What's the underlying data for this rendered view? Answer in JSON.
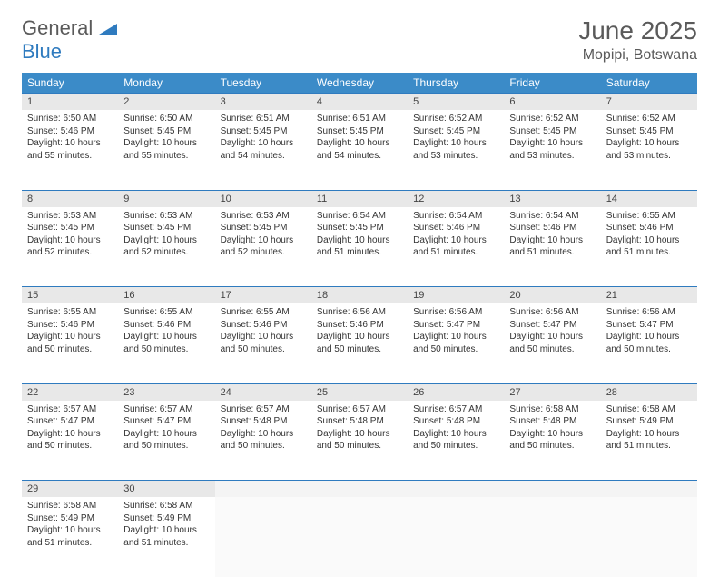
{
  "logo": {
    "line1": "General",
    "line2": "Blue"
  },
  "title": "June 2025",
  "location": "Mopipi, Botswana",
  "colors": {
    "header_bg": "#3b8bc8",
    "header_text": "#ffffff",
    "daynum_bg": "#e8e8e8",
    "border": "#2f7bbf",
    "logo_gray": "#5a5a5a",
    "logo_blue": "#2f7bbf"
  },
  "weekdays": [
    "Sunday",
    "Monday",
    "Tuesday",
    "Wednesday",
    "Thursday",
    "Friday",
    "Saturday"
  ],
  "layout": {
    "columns": 7,
    "rows": 5,
    "cell_font_size": 10
  },
  "weeks": [
    [
      {
        "n": "1",
        "sunrise": "Sunrise: 6:50 AM",
        "sunset": "Sunset: 5:46 PM",
        "day1": "Daylight: 10 hours",
        "day2": "and 55 minutes."
      },
      {
        "n": "2",
        "sunrise": "Sunrise: 6:50 AM",
        "sunset": "Sunset: 5:45 PM",
        "day1": "Daylight: 10 hours",
        "day2": "and 55 minutes."
      },
      {
        "n": "3",
        "sunrise": "Sunrise: 6:51 AM",
        "sunset": "Sunset: 5:45 PM",
        "day1": "Daylight: 10 hours",
        "day2": "and 54 minutes."
      },
      {
        "n": "4",
        "sunrise": "Sunrise: 6:51 AM",
        "sunset": "Sunset: 5:45 PM",
        "day1": "Daylight: 10 hours",
        "day2": "and 54 minutes."
      },
      {
        "n": "5",
        "sunrise": "Sunrise: 6:52 AM",
        "sunset": "Sunset: 5:45 PM",
        "day1": "Daylight: 10 hours",
        "day2": "and 53 minutes."
      },
      {
        "n": "6",
        "sunrise": "Sunrise: 6:52 AM",
        "sunset": "Sunset: 5:45 PM",
        "day1": "Daylight: 10 hours",
        "day2": "and 53 minutes."
      },
      {
        "n": "7",
        "sunrise": "Sunrise: 6:52 AM",
        "sunset": "Sunset: 5:45 PM",
        "day1": "Daylight: 10 hours",
        "day2": "and 53 minutes."
      }
    ],
    [
      {
        "n": "8",
        "sunrise": "Sunrise: 6:53 AM",
        "sunset": "Sunset: 5:45 PM",
        "day1": "Daylight: 10 hours",
        "day2": "and 52 minutes."
      },
      {
        "n": "9",
        "sunrise": "Sunrise: 6:53 AM",
        "sunset": "Sunset: 5:45 PM",
        "day1": "Daylight: 10 hours",
        "day2": "and 52 minutes."
      },
      {
        "n": "10",
        "sunrise": "Sunrise: 6:53 AM",
        "sunset": "Sunset: 5:45 PM",
        "day1": "Daylight: 10 hours",
        "day2": "and 52 minutes."
      },
      {
        "n": "11",
        "sunrise": "Sunrise: 6:54 AM",
        "sunset": "Sunset: 5:45 PM",
        "day1": "Daylight: 10 hours",
        "day2": "and 51 minutes."
      },
      {
        "n": "12",
        "sunrise": "Sunrise: 6:54 AM",
        "sunset": "Sunset: 5:46 PM",
        "day1": "Daylight: 10 hours",
        "day2": "and 51 minutes."
      },
      {
        "n": "13",
        "sunrise": "Sunrise: 6:54 AM",
        "sunset": "Sunset: 5:46 PM",
        "day1": "Daylight: 10 hours",
        "day2": "and 51 minutes."
      },
      {
        "n": "14",
        "sunrise": "Sunrise: 6:55 AM",
        "sunset": "Sunset: 5:46 PM",
        "day1": "Daylight: 10 hours",
        "day2": "and 51 minutes."
      }
    ],
    [
      {
        "n": "15",
        "sunrise": "Sunrise: 6:55 AM",
        "sunset": "Sunset: 5:46 PM",
        "day1": "Daylight: 10 hours",
        "day2": "and 50 minutes."
      },
      {
        "n": "16",
        "sunrise": "Sunrise: 6:55 AM",
        "sunset": "Sunset: 5:46 PM",
        "day1": "Daylight: 10 hours",
        "day2": "and 50 minutes."
      },
      {
        "n": "17",
        "sunrise": "Sunrise: 6:55 AM",
        "sunset": "Sunset: 5:46 PM",
        "day1": "Daylight: 10 hours",
        "day2": "and 50 minutes."
      },
      {
        "n": "18",
        "sunrise": "Sunrise: 6:56 AM",
        "sunset": "Sunset: 5:46 PM",
        "day1": "Daylight: 10 hours",
        "day2": "and 50 minutes."
      },
      {
        "n": "19",
        "sunrise": "Sunrise: 6:56 AM",
        "sunset": "Sunset: 5:47 PM",
        "day1": "Daylight: 10 hours",
        "day2": "and 50 minutes."
      },
      {
        "n": "20",
        "sunrise": "Sunrise: 6:56 AM",
        "sunset": "Sunset: 5:47 PM",
        "day1": "Daylight: 10 hours",
        "day2": "and 50 minutes."
      },
      {
        "n": "21",
        "sunrise": "Sunrise: 6:56 AM",
        "sunset": "Sunset: 5:47 PM",
        "day1": "Daylight: 10 hours",
        "day2": "and 50 minutes."
      }
    ],
    [
      {
        "n": "22",
        "sunrise": "Sunrise: 6:57 AM",
        "sunset": "Sunset: 5:47 PM",
        "day1": "Daylight: 10 hours",
        "day2": "and 50 minutes."
      },
      {
        "n": "23",
        "sunrise": "Sunrise: 6:57 AM",
        "sunset": "Sunset: 5:47 PM",
        "day1": "Daylight: 10 hours",
        "day2": "and 50 minutes."
      },
      {
        "n": "24",
        "sunrise": "Sunrise: 6:57 AM",
        "sunset": "Sunset: 5:48 PM",
        "day1": "Daylight: 10 hours",
        "day2": "and 50 minutes."
      },
      {
        "n": "25",
        "sunrise": "Sunrise: 6:57 AM",
        "sunset": "Sunset: 5:48 PM",
        "day1": "Daylight: 10 hours",
        "day2": "and 50 minutes."
      },
      {
        "n": "26",
        "sunrise": "Sunrise: 6:57 AM",
        "sunset": "Sunset: 5:48 PM",
        "day1": "Daylight: 10 hours",
        "day2": "and 50 minutes."
      },
      {
        "n": "27",
        "sunrise": "Sunrise: 6:58 AM",
        "sunset": "Sunset: 5:48 PM",
        "day1": "Daylight: 10 hours",
        "day2": "and 50 minutes."
      },
      {
        "n": "28",
        "sunrise": "Sunrise: 6:58 AM",
        "sunset": "Sunset: 5:49 PM",
        "day1": "Daylight: 10 hours",
        "day2": "and 51 minutes."
      }
    ],
    [
      {
        "n": "29",
        "sunrise": "Sunrise: 6:58 AM",
        "sunset": "Sunset: 5:49 PM",
        "day1": "Daylight: 10 hours",
        "day2": "and 51 minutes."
      },
      {
        "n": "30",
        "sunrise": "Sunrise: 6:58 AM",
        "sunset": "Sunset: 5:49 PM",
        "day1": "Daylight: 10 hours",
        "day2": "and 51 minutes."
      },
      null,
      null,
      null,
      null,
      null
    ]
  ]
}
